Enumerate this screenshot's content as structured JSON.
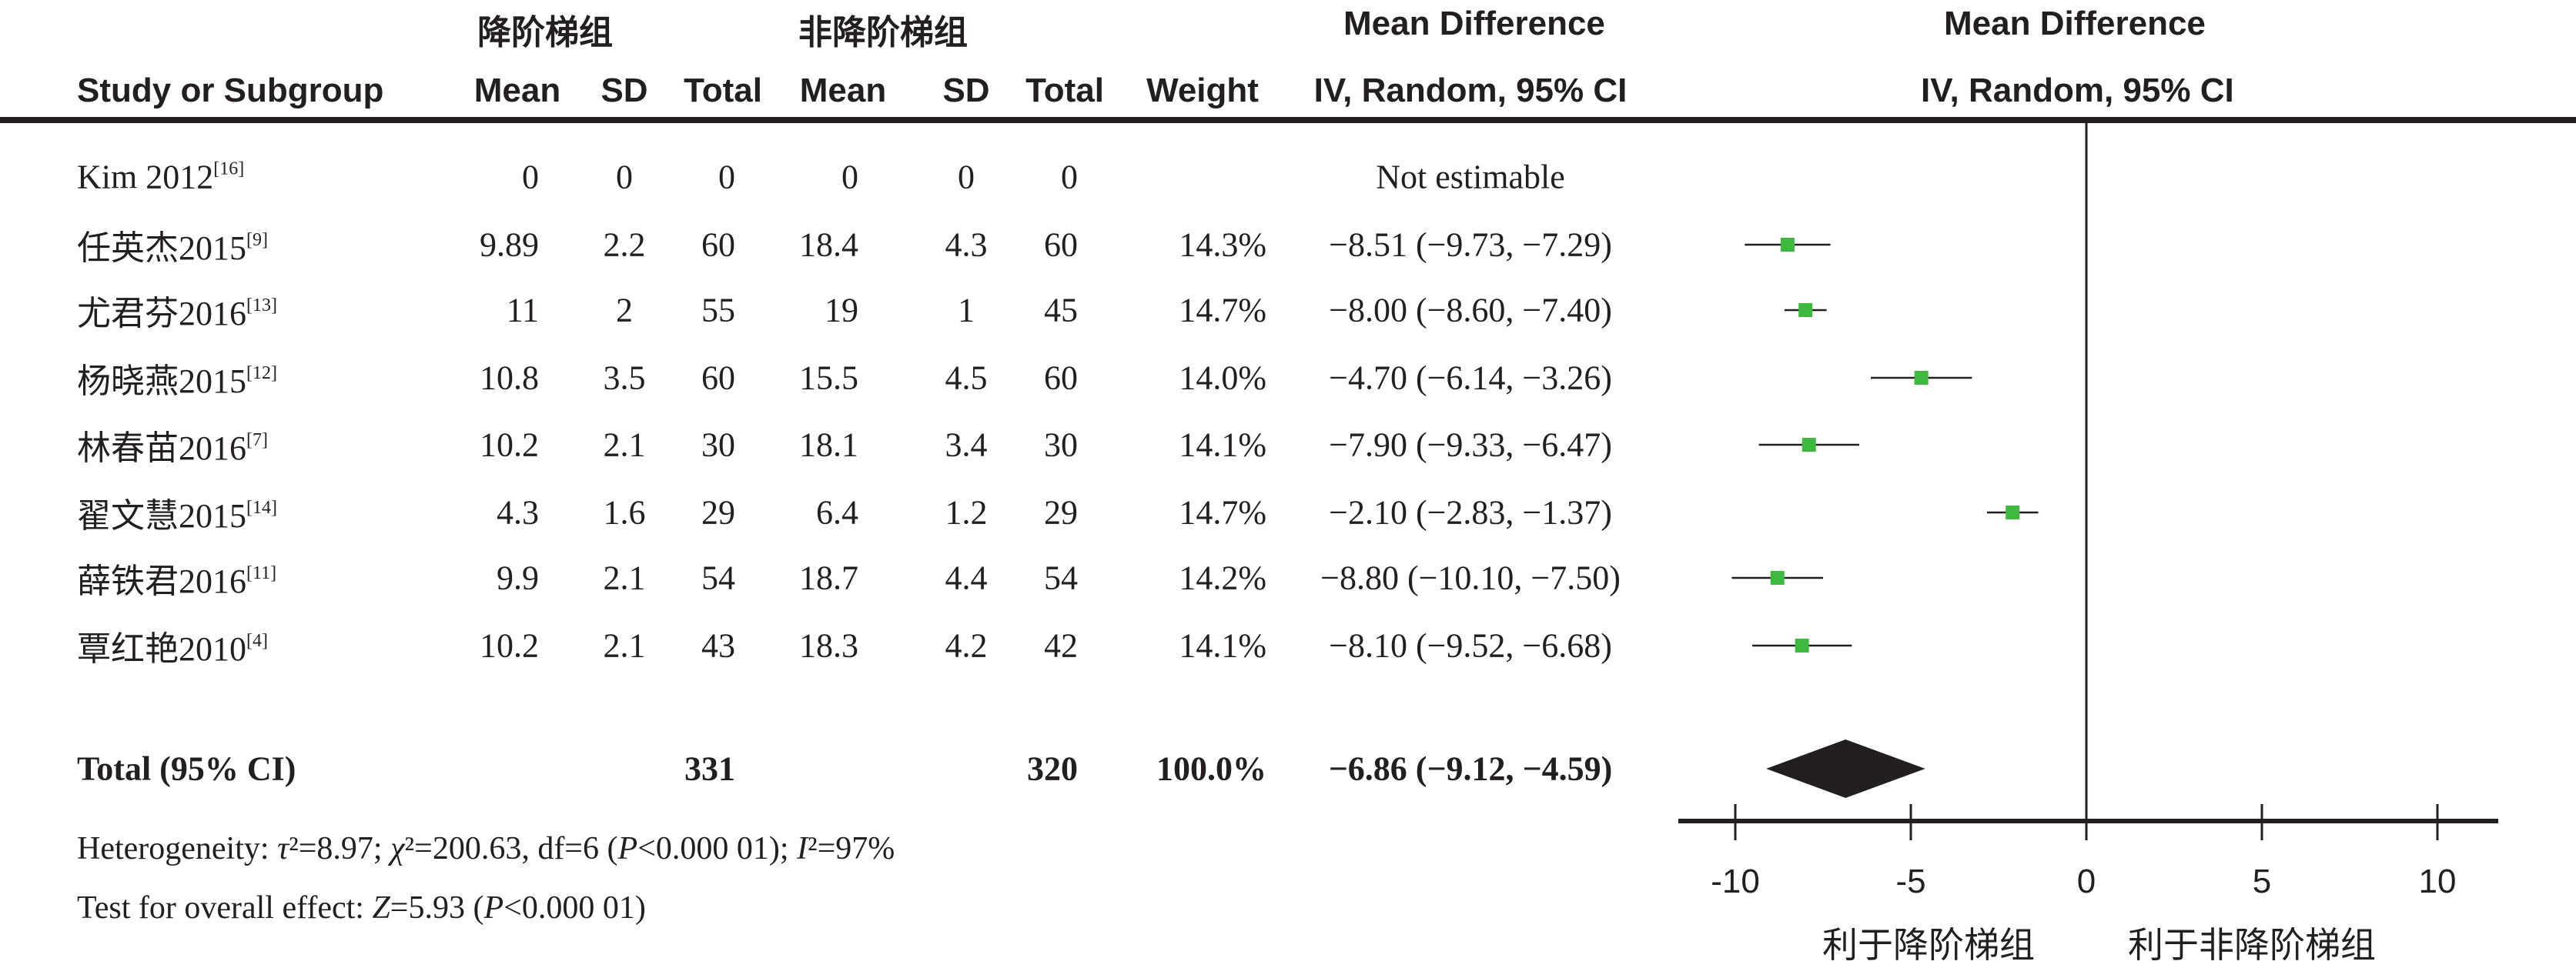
{
  "header": {
    "group1": "降阶梯组",
    "group2": "非降阶梯组",
    "md_title": "Mean Difference",
    "plot_title": "Mean Difference",
    "columns": [
      "Study or Subgroup",
      "Mean",
      "SD",
      "Total",
      "Mean",
      "SD",
      "Total",
      "Weight",
      "IV, Random, 95% CI"
    ],
    "plot_subtitle": "IV, Random, 95% CI"
  },
  "studies": [
    {
      "name": "Kim 2012",
      "ref": "[16]",
      "m1": "0",
      "sd1": "0",
      "n1": "0",
      "m2": "0",
      "sd2": "0",
      "n2": "0",
      "weight": "",
      "ci": "Not estimable"
    },
    {
      "name": "任英杰2015",
      "ref": "[9]",
      "m1": "9.89",
      "sd1": "2.2",
      "n1": "60",
      "m2": "18.4",
      "sd2": "4.3",
      "n2": "60",
      "weight": "14.3%",
      "ci": "−8.51 (−9.73, −7.29)"
    },
    {
      "name": "尤君芬2016",
      "ref": "[13]",
      "m1": "11",
      "sd1": "2",
      "n1": "55",
      "m2": "19",
      "sd2": "1",
      "n2": "45",
      "weight": "14.7%",
      "ci": "−8.00 (−8.60, −7.40)"
    },
    {
      "name": "杨晓燕2015",
      "ref": "[12]",
      "m1": "10.8",
      "sd1": "3.5",
      "n1": "60",
      "m2": "15.5",
      "sd2": "4.5",
      "n2": "60",
      "weight": "14.0%",
      "ci": "−4.70 (−6.14, −3.26)"
    },
    {
      "name": "林春苗2016",
      "ref": "[7]",
      "m1": "10.2",
      "sd1": "2.1",
      "n1": "30",
      "m2": "18.1",
      "sd2": "3.4",
      "n2": "30",
      "weight": "14.1%",
      "ci": "−7.90 (−9.33, −6.47)"
    },
    {
      "name": "翟文慧2015",
      "ref": "[14]",
      "m1": "4.3",
      "sd1": "1.6",
      "n1": "29",
      "m2": "6.4",
      "sd2": "1.2",
      "n2": "29",
      "weight": "14.7%",
      "ci": "−2.10 (−2.83, −1.37)"
    },
    {
      "name": "薛铁君2016",
      "ref": "[11]",
      "m1": "9.9",
      "sd1": "2.1",
      "n1": "54",
      "m2": "18.7",
      "sd2": "4.4",
      "n2": "54",
      "weight": "14.2%",
      "ci": "−8.80 (−10.10, −7.50)"
    },
    {
      "name": "覃红艳2010",
      "ref": "[4]",
      "m1": "10.2",
      "sd1": "2.1",
      "n1": "43",
      "m2": "18.3",
      "sd2": "4.2",
      "n2": "42",
      "weight": "14.1%",
      "ci": "−8.10 (−9.52, −6.68)"
    }
  ],
  "total": {
    "label": "Total (95% CI)",
    "n1": "331",
    "n2": "320",
    "weight": "100.0%",
    "ci": "−6.86 (−9.12, −4.59)"
  },
  "footer": {
    "heterogeneity": [
      {
        "t": "Heterogeneity: ",
        "i": false
      },
      {
        "t": "τ",
        "i": true
      },
      {
        "t": "²=8.97; ",
        "i": false
      },
      {
        "t": "χ",
        "i": true
      },
      {
        "t": "²=200.63, df=6 (",
        "i": false
      },
      {
        "t": "P",
        "i": true
      },
      {
        "t": "<0.000 01); ",
        "i": false
      },
      {
        "t": "I",
        "i": true
      },
      {
        "t": "²=97%",
        "i": false
      }
    ],
    "overall": [
      {
        "t": "Test for overall effect: ",
        "i": false
      },
      {
        "t": "Z",
        "i": true
      },
      {
        "t": "=5.93 (",
        "i": false
      },
      {
        "t": "P",
        "i": true
      },
      {
        "t": "<0.000 01)",
        "i": false
      }
    ]
  },
  "colors": {
    "square": "#3dba3d",
    "ink": "#231f20"
  },
  "chart_data": {
    "type": "forest",
    "xlim": [
      -10,
      10
    ],
    "xticks": [
      "-10",
      "-5",
      "0",
      "5",
      "10"
    ],
    "xlabel_left": "利于降阶梯组",
    "xlabel_right": "利于非降阶梯组",
    "points": [
      null,
      {
        "md": -8.51,
        "lo": -9.73,
        "hi": -7.29
      },
      {
        "md": -8.0,
        "lo": -8.6,
        "hi": -7.4
      },
      {
        "md": -4.7,
        "lo": -6.14,
        "hi": -3.26
      },
      {
        "md": -7.9,
        "lo": -9.33,
        "hi": -6.47
      },
      {
        "md": -2.1,
        "lo": -2.83,
        "hi": -1.37
      },
      {
        "md": -8.8,
        "lo": -10.1,
        "hi": -7.5
      },
      {
        "md": -8.1,
        "lo": -9.52,
        "hi": -6.68
      }
    ],
    "pooled": {
      "md": -6.86,
      "lo": -9.12,
      "hi": -4.59
    }
  }
}
